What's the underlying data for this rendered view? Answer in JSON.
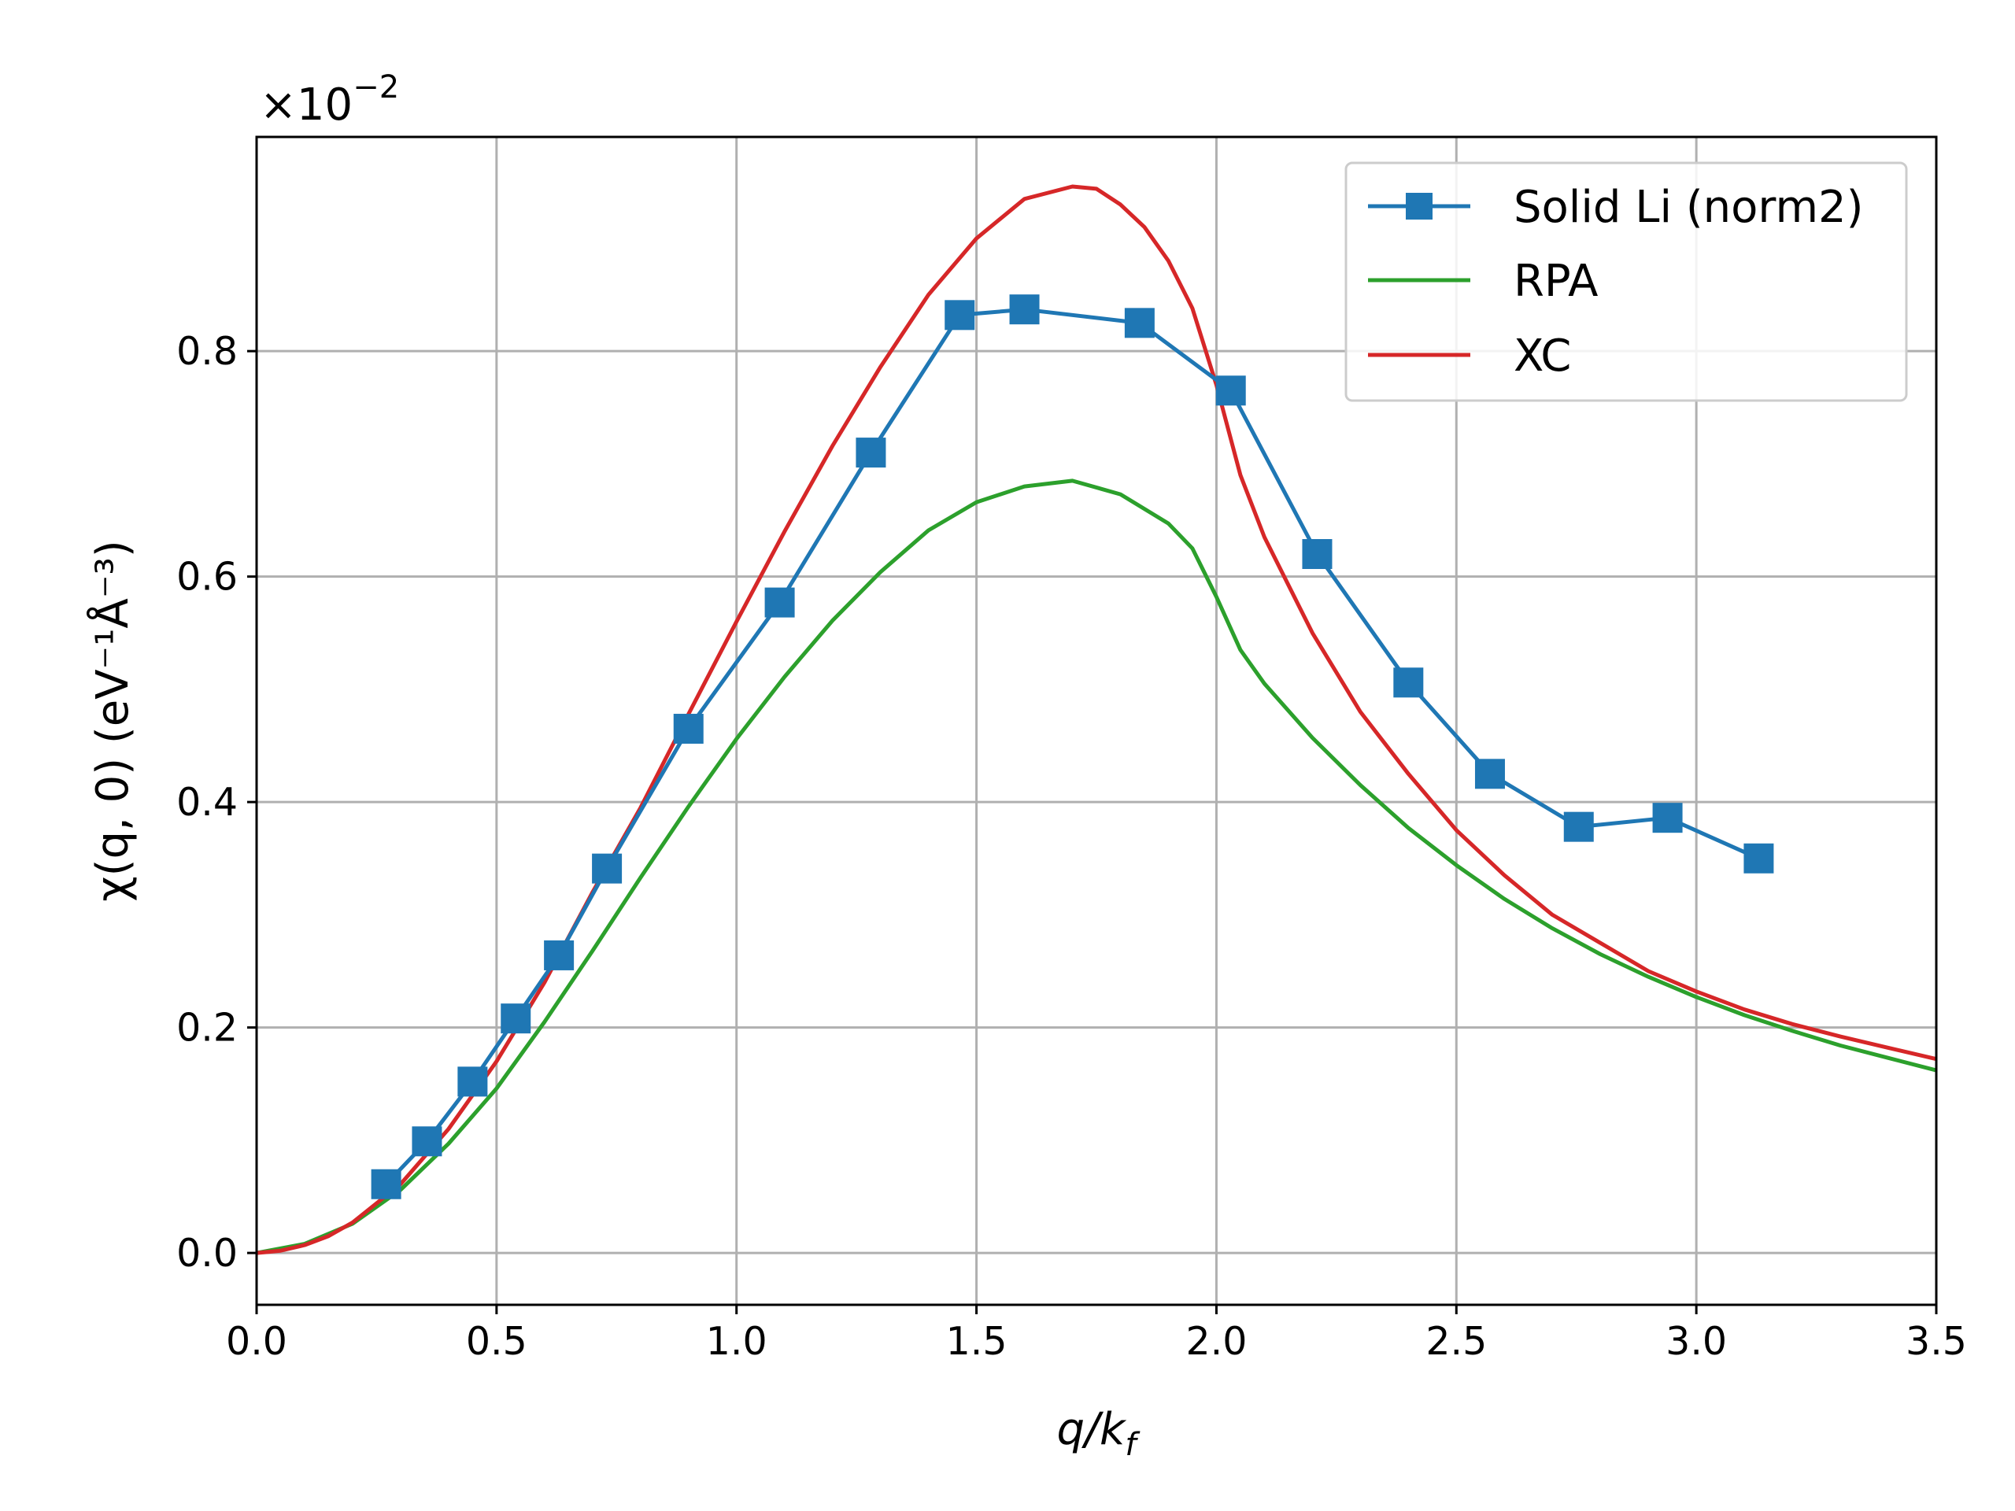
{
  "chart_data": {
    "type": "line",
    "title": "",
    "xlabel": "q/k",
    "xlabel_subscript": "f",
    "ylabel": "χ(q, 0)  (eV⁻¹Å⁻³)",
    "y_scale_label": "×10",
    "y_scale_exponent": "−2",
    "xlim": [
      0.0,
      3.5
    ],
    "ylim": [
      -0.046,
      0.99
    ],
    "xticks": [
      0.0,
      0.5,
      1.0,
      1.5,
      2.0,
      2.5,
      3.0,
      3.5
    ],
    "xtick_labels": [
      "0.0",
      "0.5",
      "1.0",
      "1.5",
      "2.0",
      "2.5",
      "3.0",
      "3.5"
    ],
    "yticks": [
      0.0,
      0.2,
      0.4,
      0.6,
      0.8
    ],
    "ytick_labels": [
      "0.0",
      "0.2",
      "0.4",
      "0.6",
      "0.8"
    ],
    "grid": true,
    "legend_position": "top-right",
    "series": [
      {
        "name": "Solid Li (norm2)",
        "color": "#1f77b4",
        "marker": "square",
        "x": [
          0.27,
          0.355,
          0.45,
          0.54,
          0.63,
          0.73,
          0.9,
          1.09,
          1.28,
          1.465,
          1.6,
          1.84,
          2.03,
          2.21,
          2.4,
          2.57,
          2.755,
          2.94,
          3.13
        ],
        "y": [
          0.061,
          0.099,
          0.152,
          0.208,
          0.264,
          0.341,
          0.465,
          0.577,
          0.71,
          0.832,
          0.837,
          0.825,
          0.765,
          0.62,
          0.506,
          0.425,
          0.378,
          0.386,
          0.35
        ]
      },
      {
        "name": "RPA",
        "color": "#2ca02c",
        "marker": "none",
        "x": [
          0.0,
          0.1,
          0.2,
          0.3,
          0.4,
          0.5,
          0.6,
          0.7,
          0.8,
          0.9,
          1.0,
          1.1,
          1.2,
          1.3,
          1.4,
          1.5,
          1.6,
          1.7,
          1.8,
          1.9,
          1.95,
          2.0,
          2.05,
          2.1,
          2.2,
          2.3,
          2.4,
          2.5,
          2.6,
          2.7,
          2.8,
          2.9,
          3.0,
          3.1,
          3.2,
          3.3,
          3.4,
          3.5
        ],
        "y": [
          0.0,
          0.008,
          0.026,
          0.056,
          0.097,
          0.146,
          0.205,
          0.268,
          0.333,
          0.396,
          0.456,
          0.511,
          0.561,
          0.604,
          0.641,
          0.666,
          0.68,
          0.685,
          0.673,
          0.647,
          0.625,
          0.582,
          0.535,
          0.505,
          0.457,
          0.415,
          0.377,
          0.344,
          0.314,
          0.288,
          0.265,
          0.245,
          0.227,
          0.211,
          0.197,
          0.184,
          0.173,
          0.162
        ]
      },
      {
        "name": "XC",
        "color": "#d62728",
        "marker": "none",
        "x": [
          0.0,
          0.05,
          0.1,
          0.15,
          0.2,
          0.3,
          0.4,
          0.5,
          0.6,
          0.7,
          0.8,
          0.9,
          1.0,
          1.1,
          1.2,
          1.3,
          1.4,
          1.5,
          1.6,
          1.7,
          1.75,
          1.8,
          1.85,
          1.9,
          1.95,
          2.0,
          2.05,
          2.1,
          2.2,
          2.3,
          2.4,
          2.5,
          2.6,
          2.7,
          2.8,
          2.9,
          3.0,
          3.1,
          3.2,
          3.3,
          3.4,
          3.5
        ],
        "y": [
          0.0,
          0.002,
          0.007,
          0.015,
          0.027,
          0.061,
          0.11,
          0.17,
          0.24,
          0.32,
          0.395,
          0.478,
          0.56,
          0.64,
          0.716,
          0.786,
          0.85,
          0.9,
          0.935,
          0.946,
          0.944,
          0.93,
          0.91,
          0.88,
          0.838,
          0.77,
          0.69,
          0.635,
          0.55,
          0.48,
          0.425,
          0.375,
          0.335,
          0.3,
          0.275,
          0.25,
          0.232,
          0.216,
          0.203,
          0.192,
          0.182,
          0.172
        ]
      }
    ]
  }
}
